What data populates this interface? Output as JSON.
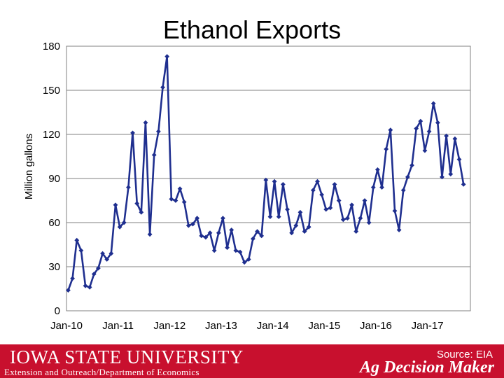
{
  "chart_data": {
    "type": "line",
    "title": "Ethanol Exports",
    "xlabel": "",
    "ylabel": "Million gallons",
    "ylim": [
      0,
      180
    ],
    "yticks": [
      0,
      30,
      60,
      90,
      120,
      150,
      180
    ],
    "xticks": [
      "Jan-10",
      "Jan-11",
      "Jan-12",
      "Jan-13",
      "Jan-14",
      "Jan-15",
      "Jan-16",
      "Jan-17"
    ],
    "grid": true,
    "legend": "none",
    "series_color": "#1f2f8f",
    "x_start": "2010-01",
    "x_step": "month",
    "values": [
      14,
      22,
      48,
      41,
      17,
      16,
      25,
      29,
      39,
      35,
      39,
      72,
      57,
      60,
      84,
      121,
      73,
      67,
      128,
      52,
      106,
      122,
      152,
      173,
      76,
      75,
      83,
      74,
      58,
      59,
      63,
      51,
      50,
      53,
      41,
      53,
      63,
      43,
      55,
      41,
      40,
      33,
      35,
      49,
      54,
      51,
      89,
      64,
      88,
      64,
      86,
      69,
      53,
      58,
      67,
      54,
      57,
      82,
      88,
      79,
      69,
      70,
      86,
      75,
      62,
      63,
      72,
      54,
      63,
      75,
      60,
      84,
      96,
      84,
      110,
      123,
      68,
      55,
      82,
      91,
      99,
      124,
      129,
      109,
      122,
      141,
      128,
      91,
      119,
      93,
      117,
      103,
      86
    ]
  },
  "footer": {
    "university": "IOWA STATE UNIVERSITY",
    "department": "Extension and Outreach/Department of Economics",
    "source": "Source: EIA",
    "brand": "Ag Decision Maker"
  },
  "colors": {
    "footer_bg": "#c8102e",
    "series": "#1f2f8f"
  }
}
